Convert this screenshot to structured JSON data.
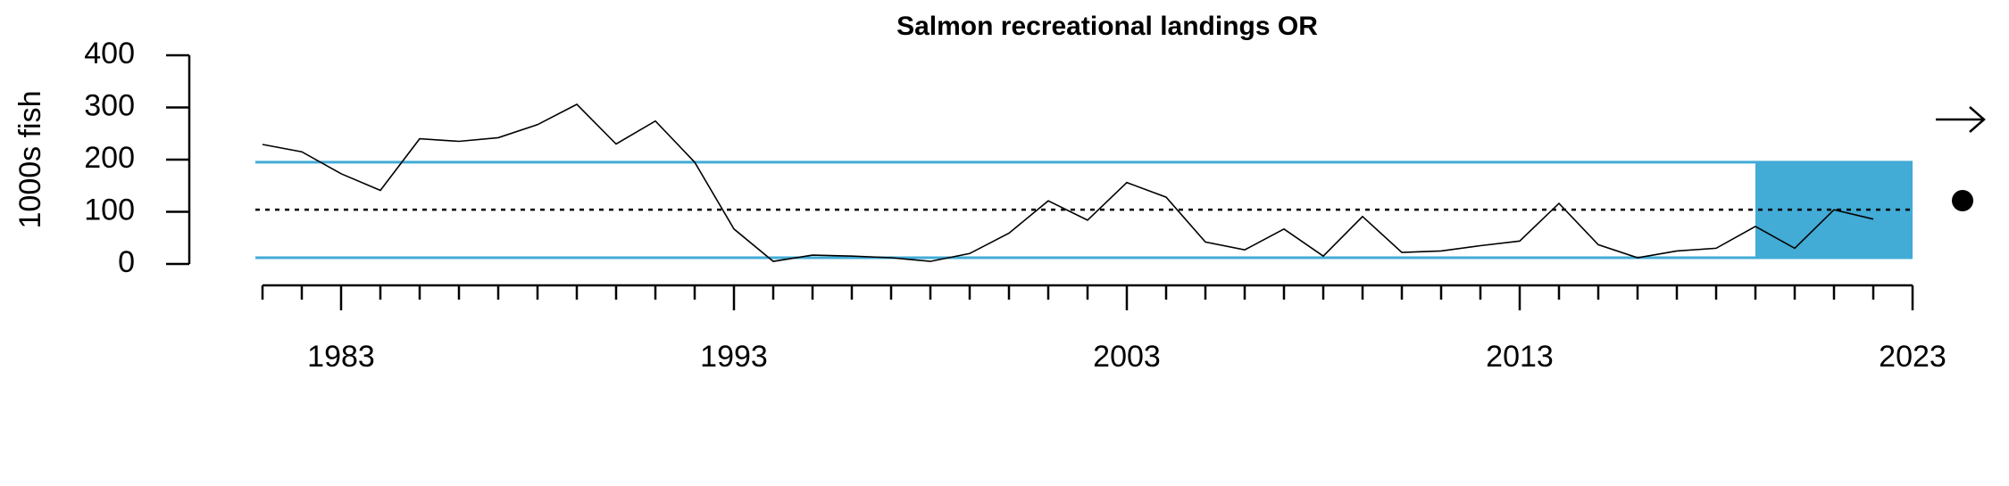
{
  "chart_data": {
    "type": "line",
    "title": "Salmon recreational landings OR",
    "y_label": "1000s fish",
    "x": [
      1981,
      1982,
      1983,
      1984,
      1985,
      1986,
      1987,
      1988,
      1989,
      1990,
      1991,
      1992,
      1993,
      1994,
      1995,
      1996,
      1997,
      1998,
      1999,
      2000,
      2001,
      2002,
      2003,
      2004,
      2005,
      2006,
      2007,
      2008,
      2009,
      2010,
      2011,
      2012,
      2013,
      2014,
      2015,
      2016,
      2017,
      2018,
      2019,
      2020,
      2021,
      2022
    ],
    "series": [
      {
        "name": "Landings",
        "color": "#000000",
        "values": [
          229,
          215,
          173,
          141,
          240,
          235,
          242,
          267,
          306,
          230,
          274,
          195,
          67,
          5,
          17,
          15,
          12,
          5,
          20,
          59,
          121,
          84,
          156,
          128,
          42,
          27,
          67,
          15,
          91,
          22,
          25,
          35,
          44,
          116,
          37,
          12,
          25,
          30,
          72,
          30,
          104,
          86
        ]
      }
    ],
    "mean": 104,
    "upper": 195,
    "lower": 12,
    "band_color": "#42abd6",
    "shade_x": [
      2019,
      2023
    ],
    "xlim": [
      1981,
      2023
    ],
    "xticks": [
      1983,
      1993,
      2003,
      2013,
      2023
    ],
    "ylim": [
      0,
      400
    ],
    "yticks": [
      0,
      100,
      200,
      300,
      400
    ]
  }
}
